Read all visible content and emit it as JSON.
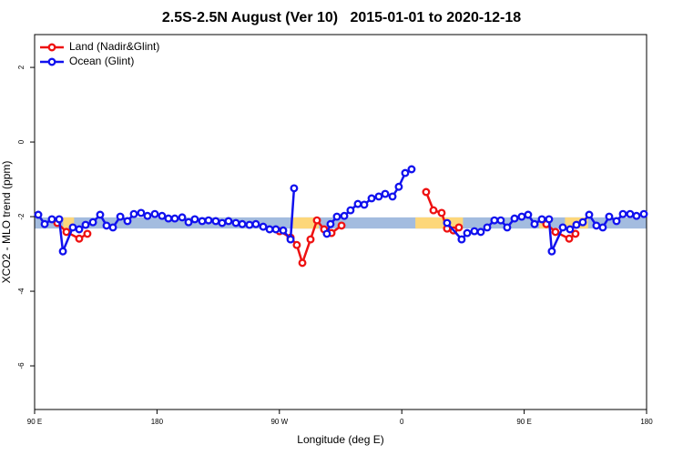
{
  "chart_data": {
    "type": "line",
    "title": "2.5S-2.5N August (Ver 10)   2015-01-01 to 2020-12-18",
    "xlabel": "Longitude (deg E)",
    "ylabel": "XCO2 - MLO trend (ppm)",
    "xlim": [
      90,
      540
    ],
    "ylim": [
      -7.17,
      2.88
    ],
    "xticks": [
      {
        "value": 90,
        "label": "90 E"
      },
      180,
      {
        "value": 270,
        "label": "90 W"
      },
      {
        "value": 360,
        "label": "0"
      },
      {
        "value": 450,
        "label": "90 E"
      },
      {
        "value": 540,
        "label": "180"
      }
    ],
    "yticks": [
      2,
      0,
      -2,
      -4,
      -6
    ],
    "legend": "top-left",
    "bands": [
      {
        "xmin": 90,
        "xmax": 540,
        "ymin": -2.32,
        "ymax": -2.02,
        "color": "#a3bcdf"
      },
      {
        "xmin": 111,
        "xmax": 119,
        "ymin": -2.32,
        "ymax": -2.02,
        "color": "#fdd77a"
      },
      {
        "xmin": 280,
        "xmax": 299,
        "ymin": -2.32,
        "ymax": -2.02,
        "color": "#fdd77a"
      },
      {
        "xmin": 370,
        "xmax": 405,
        "ymin": -2.32,
        "ymax": -2.02,
        "color": "#fdd77a"
      },
      {
        "xmin": 461,
        "xmax": 468,
        "ymin": -2.32,
        "ymax": -2.02,
        "color": "#fdd77a"
      },
      {
        "xmin": 480,
        "xmax": 497,
        "ymin": -2.32,
        "ymax": -2.02,
        "color": "#fdd77a"
      }
    ],
    "series": [
      {
        "name": "Land (Nadir&Glint)",
        "color": "#ee1111",
        "x": [
          106.7,
          113.4,
          122.8,
          128.8,
          null,
          270.1,
          278.2,
          282.8,
          286.9,
          292.9,
          297.6,
          302.9,
          308.3,
          315.7,
          null,
          377.9,
          383.3,
          389.3,
          393.3,
          398.0,
          402.0,
          null,
          466.3,
          473.0,
          483.1,
          487.7
        ],
        "values": [
          -2.17,
          -2.41,
          -2.59,
          -2.46,
          null,
          -2.39,
          -2.56,
          -2.76,
          -3.24,
          -2.61,
          -2.1,
          -2.34,
          -2.44,
          -2.24,
          null,
          -1.34,
          -1.83,
          -1.9,
          -2.32,
          -2.37,
          -2.29,
          null,
          -2.2,
          -2.41,
          -2.59,
          -2.46
        ]
      },
      {
        "name": "Ocean (Glint)",
        "color": "#1111ee",
        "x": [
          92.7,
          97.4,
          102.7,
          108.1,
          110.8,
          118.1,
          122.8,
          127.5,
          132.9,
          138.2,
          142.9,
          147.6,
          153.0,
          158.3,
          163.0,
          168.3,
          173.0,
          178.4,
          183.7,
          188.4,
          193.1,
          198.5,
          203.2,
          207.8,
          213.2,
          217.9,
          223.2,
          227.9,
          232.6,
          238.0,
          242.7,
          248.0,
          252.7,
          258.1,
          262.8,
          267.4,
          272.8,
          278.2,
          280.8,
          null,
          304.9,
          307.6,
          312.3,
          317.7,
          322.3,
          327.7,
          332.4,
          337.8,
          343.1,
          347.8,
          353.2,
          357.8,
          362.5,
          367.2,
          null,
          393.3,
          404.0,
          408.1,
          413.4,
          418.1,
          422.8,
          428.1,
          432.8,
          437.5,
          442.9,
          448.2,
          452.9,
          457.6,
          463.0,
          468.3,
          470.3,
          478.4,
          483.7,
          488.4,
          493.1,
          497.8,
          503.1,
          507.8,
          512.5,
          517.9,
          522.6,
          527.9,
          532.6,
          538.0
        ],
        "values": [
          -1.95,
          -2.2,
          -2.07,
          -2.07,
          -2.93,
          -2.29,
          -2.34,
          -2.22,
          -2.15,
          -1.95,
          -2.24,
          -2.29,
          -2.0,
          -2.12,
          -1.93,
          -1.9,
          -1.98,
          -1.93,
          -1.98,
          -2.05,
          -2.05,
          -2.02,
          -2.15,
          -2.07,
          -2.12,
          -2.1,
          -2.12,
          -2.17,
          -2.12,
          -2.17,
          -2.2,
          -2.22,
          -2.2,
          -2.27,
          -2.34,
          -2.34,
          -2.37,
          -2.61,
          -1.24,
          null,
          -2.46,
          -2.2,
          -2.0,
          -1.98,
          -1.83,
          -1.66,
          -1.68,
          -1.51,
          -1.46,
          -1.39,
          -1.46,
          -1.2,
          -0.83,
          -0.73,
          null,
          -2.17,
          -2.61,
          -2.44,
          -2.39,
          -2.41,
          -2.29,
          -2.1,
          -2.1,
          -2.29,
          -2.05,
          -2.0,
          -1.95,
          -2.2,
          -2.07,
          -2.07,
          -2.93,
          -2.29,
          -2.34,
          -2.22,
          -2.15,
          -1.95,
          -2.24,
          -2.29,
          -2.0,
          -2.12,
          -1.93,
          -1.93,
          -1.98,
          -1.93
        ]
      }
    ]
  }
}
